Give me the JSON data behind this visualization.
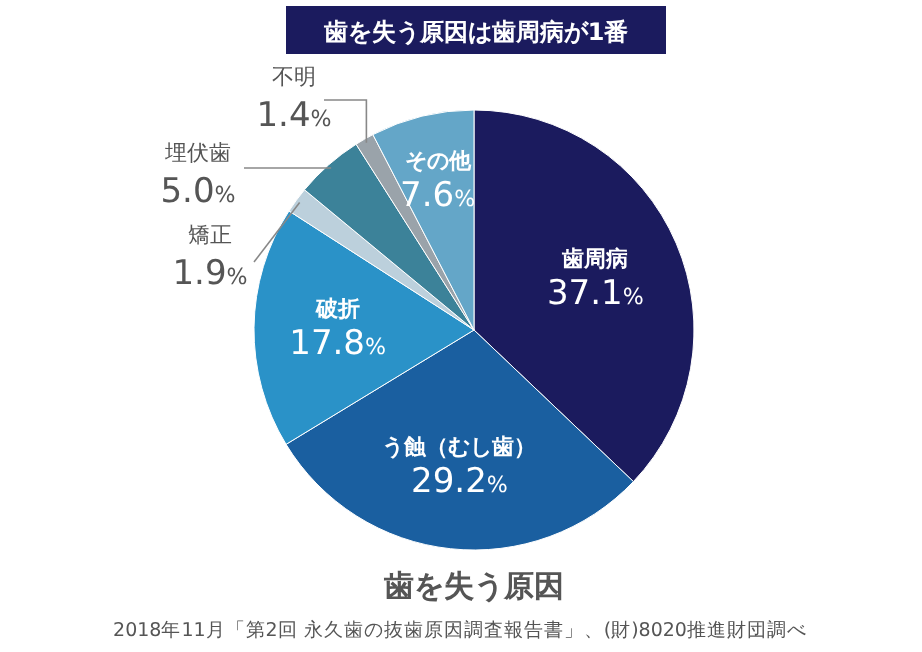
{
  "chart_data": {
    "type": "pie",
    "title": "歯を失う原因は歯周病が1番",
    "subtitle": "歯を失う原因",
    "categories": [
      "歯周病",
      "う蝕（むし歯）",
      "破折",
      "矯正",
      "埋伏歯",
      "不明",
      "その他"
    ],
    "values": [
      37.1,
      29.2,
      17.8,
      1.9,
      5.0,
      1.4,
      7.6
    ],
    "value_labels": [
      "37.1%",
      "29.2%",
      "17.8%",
      "1.9%",
      "5.0%",
      "1.4%",
      "7.6%"
    ],
    "colors": [
      "#1b1b5e",
      "#1a5fa0",
      "#2a92c8",
      "#bcd0dc",
      "#3c8299",
      "#9aa3aa",
      "#64a6c8"
    ],
    "annotations": [
      "2018年11月「第2回 永久歯の抜歯原因調査報告書」、(財)8020推進財団調べ"
    ]
  }
}
